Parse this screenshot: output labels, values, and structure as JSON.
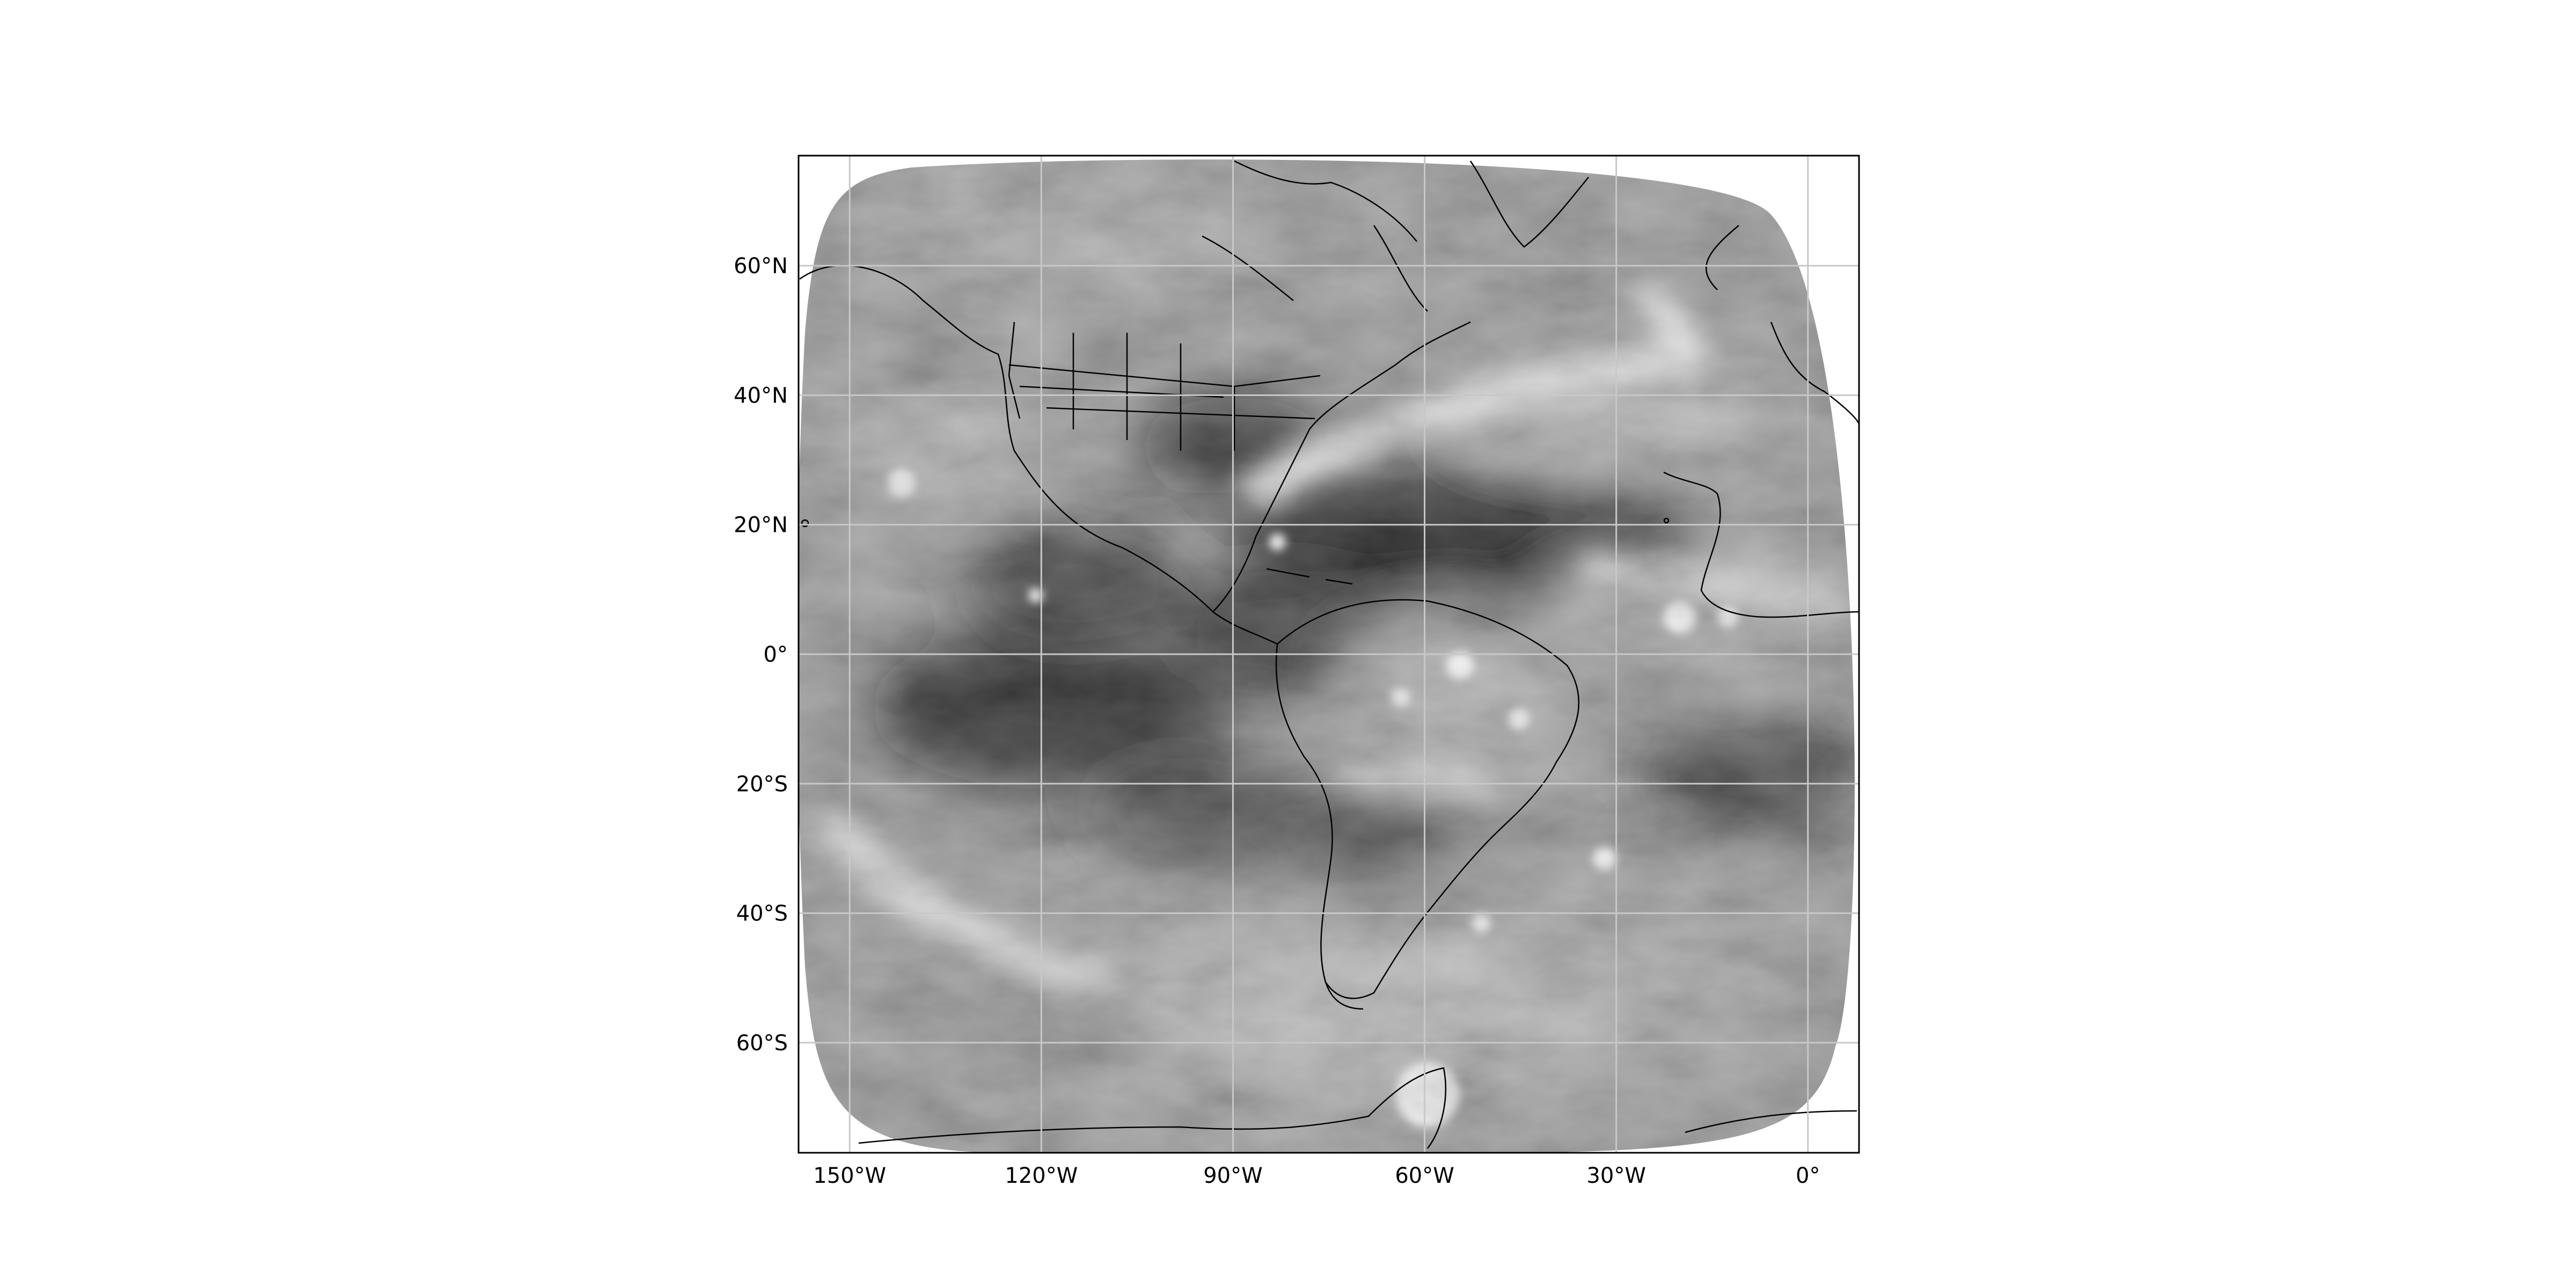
{
  "map": {
    "projection": "geostationary full disk (Plate Carree lat/lon frame)",
    "imagery": "water vapor, grayscale",
    "lon_range": [
      -158,
      8
    ],
    "lat_range": [
      -77,
      77
    ],
    "gridlines": true,
    "grid_color": "#c8c8c8",
    "lon_ticks": [
      {
        "value": -150,
        "label": "150°W"
      },
      {
        "value": -120,
        "label": "120°W"
      },
      {
        "value": -90,
        "label": "90°W"
      },
      {
        "value": -60,
        "label": "60°W"
      },
      {
        "value": -30,
        "label": "30°W"
      },
      {
        "value": 0,
        "label": "0°"
      }
    ],
    "lat_ticks": [
      {
        "value": 60,
        "label": "60°N"
      },
      {
        "value": 40,
        "label": "40°N"
      },
      {
        "value": 20,
        "label": "20°N"
      },
      {
        "value": 0,
        "label": "0°"
      },
      {
        "value": -20,
        "label": "20°S"
      },
      {
        "value": -40,
        "label": "40°S"
      },
      {
        "value": -60,
        "label": "60°S"
      }
    ],
    "colors": {
      "frame": "#000000",
      "coastline": "#000000",
      "dry_air": "#080808",
      "moist_air": "#9a9a9a",
      "cloud_tops": "#f2f2f2"
    }
  }
}
